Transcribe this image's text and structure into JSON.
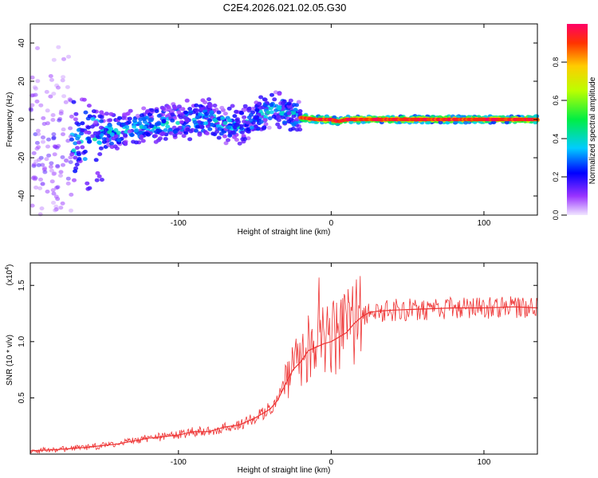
{
  "title": "C2E4.2026.021.02.05.G30",
  "chart_data": [
    {
      "type": "heatmap",
      "name": "spectrogram",
      "xlabel": "Height of straight line (km)",
      "ylabel": "Frequency (Hz)",
      "xlim": [
        -197,
        135
      ],
      "ylim": [
        -50,
        50
      ],
      "xticks": [
        -100,
        0,
        100
      ],
      "xtick_labels": [
        "-100",
        "0",
        "100"
      ],
      "yticks": [
        -40,
        -20,
        0,
        20,
        40
      ],
      "ytick_labels": [
        "-40",
        "-20",
        "0",
        "20",
        "40"
      ],
      "ridge": {
        "x": [
          -197,
          -180,
          -160,
          -140,
          -120,
          -100,
          -80,
          -60,
          -40,
          -35,
          -30,
          -20,
          -10,
          0,
          5,
          10,
          20,
          60,
          100,
          135
        ],
        "frequency_hz": [
          -13,
          -13,
          -10,
          -6,
          -3,
          -1,
          0,
          -4,
          5,
          6,
          4,
          1,
          0,
          0,
          -1,
          0,
          0,
          0,
          0,
          0
        ]
      },
      "colorbar": {
        "label": "Normalized spectral amplitude",
        "range": [
          0.0,
          1.0
        ],
        "ticks": [
          0.0,
          0.2,
          0.4,
          0.6,
          0.8
        ],
        "tick_labels": [
          "0.0",
          "0.2",
          "0.4",
          "0.6",
          "0.8"
        ]
      }
    },
    {
      "type": "line",
      "name": "snr",
      "xlabel": "Height of straight line (km)",
      "ylabel": "SNR (10 * v/v)",
      "multiplier": "(x10",
      "multiplier_exp": "4",
      "multiplier_end": ")",
      "xlim": [
        -197,
        135
      ],
      "ylim": [
        0,
        1.7
      ],
      "xticks": [
        -100,
        0,
        100
      ],
      "xtick_labels": [
        "-100",
        "0",
        "100"
      ],
      "yticks": [
        0.5,
        1.0,
        1.5
      ],
      "ytick_labels": [
        "0.5",
        "1.0",
        "1.5"
      ],
      "color": "#ee3333",
      "series": [
        {
          "name": "SNR",
          "x": [
            -197,
            -180,
            -160,
            -140,
            -120,
            -100,
            -90,
            -80,
            -70,
            -60,
            -50,
            -40,
            -35,
            -30,
            -25,
            -20,
            -15,
            -10,
            -5,
            0,
            5,
            10,
            15,
            20,
            25,
            30,
            40,
            60,
            80,
            100,
            120,
            135
          ],
          "values": [
            0.03,
            0.04,
            0.06,
            0.09,
            0.14,
            0.17,
            0.2,
            0.2,
            0.24,
            0.26,
            0.32,
            0.4,
            0.48,
            0.62,
            0.75,
            0.82,
            0.92,
            0.95,
            0.98,
            1.0,
            1.04,
            1.08,
            1.16,
            1.22,
            1.26,
            1.27,
            1.28,
            1.29,
            1.3,
            1.3,
            1.31,
            1.3
          ]
        }
      ]
    }
  ]
}
